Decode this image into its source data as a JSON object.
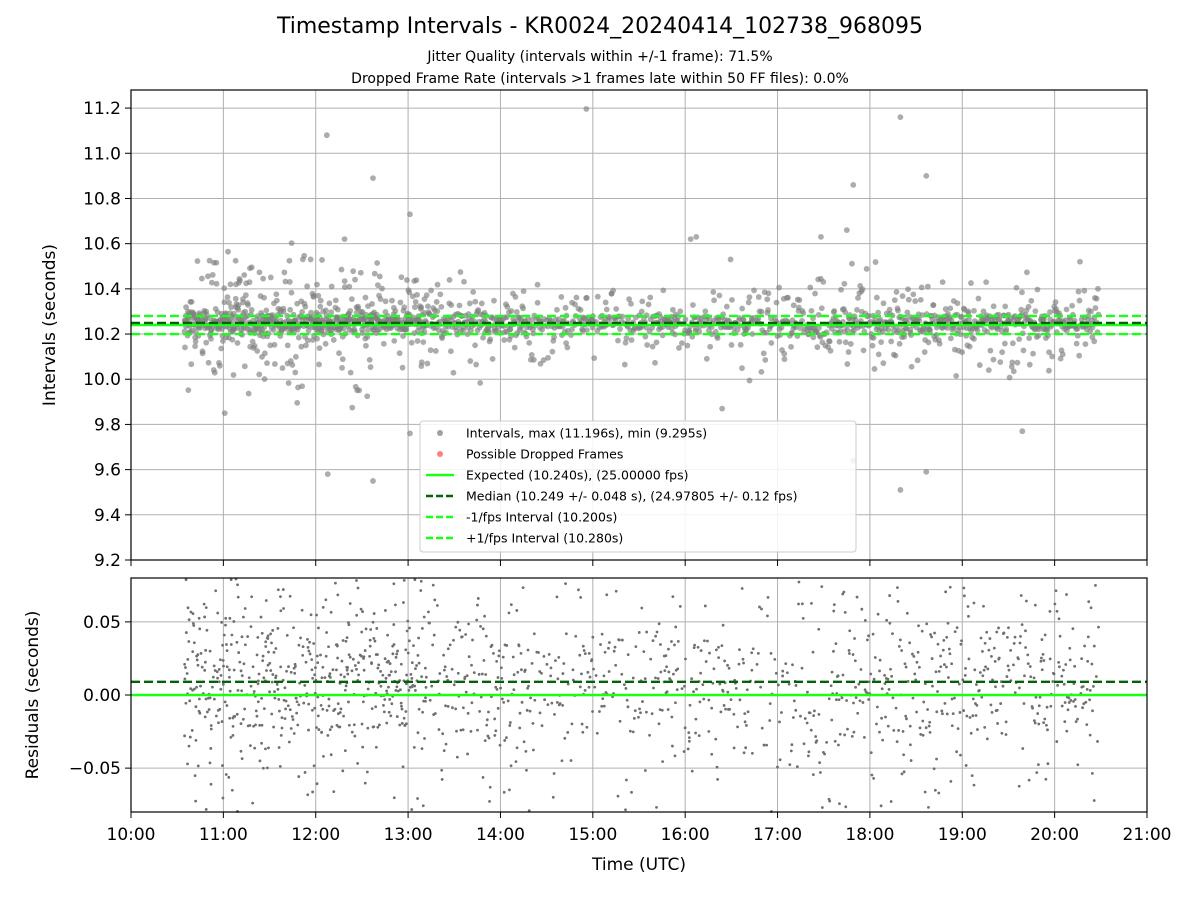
{
  "header": {
    "title": "Timestamp Intervals - KR0024_20240414_102738_968095",
    "subtitle_1": "Jitter Quality (intervals within +/-1 frame): 71.5%",
    "subtitle_2": "Dropped Frame Rate (intervals >1 frames late within 50 FF files): 0.0%"
  },
  "chart_data": [
    {
      "panel": "intervals",
      "type": "scatter",
      "ylabel": "Intervals (seconds)",
      "xlabel": "",
      "x_unit": "hour of day (UTC)",
      "xlim": [
        10.0,
        21.0
      ],
      "ylim": [
        9.2,
        11.28
      ],
      "yticks": [
        "9.2",
        "9.4",
        "9.6",
        "9.8",
        "10.0",
        "10.2",
        "10.4",
        "10.6",
        "10.8",
        "11.0",
        "11.2"
      ],
      "ytick_values": [
        9.2,
        9.4,
        9.6,
        9.8,
        10.0,
        10.2,
        10.4,
        10.6,
        10.8,
        11.0,
        11.2
      ],
      "grid": true,
      "legend_placement": "lower-center",
      "series": [
        {
          "name": "Intervals, max (11.196s), min (9.295s)",
          "kind": "points",
          "color": "#808080",
          "max": 11.196,
          "min": 9.295,
          "outliers": [
            [
              12.12,
              11.08
            ],
            [
              14.93,
              11.196
            ],
            [
              18.33,
              11.16
            ],
            [
              12.62,
              10.89
            ],
            [
              18.61,
              10.9
            ],
            [
              13.02,
              10.73
            ],
            [
              17.82,
              10.86
            ],
            [
              12.13,
              9.58
            ],
            [
              12.62,
              9.55
            ],
            [
              19.65,
              9.77
            ],
            [
              13.02,
              9.76
            ],
            [
              17.82,
              9.64
            ],
            [
              18.61,
              9.59
            ],
            [
              18.33,
              9.51
            ],
            [
              16.12,
              10.63
            ],
            [
              16.4,
              9.87
            ],
            [
              17.47,
              10.63
            ],
            [
              17.75,
              10.66
            ]
          ]
        },
        {
          "name": "Possible Dropped Frames",
          "kind": "points",
          "color": "#ff5555",
          "values": []
        },
        {
          "name": "Expected (10.240s), (25.00000 fps)",
          "kind": "hline",
          "y": 10.24,
          "color": "#1aff1a",
          "style": "solid"
        },
        {
          "name": "Median (10.249 +/- 0.048 s), (24.97805 +/- 0.12 fps)",
          "kind": "hline",
          "y": 10.249,
          "color": "#006400",
          "style": "dashed"
        },
        {
          "name": "-1/fps Interval (10.200s)",
          "kind": "hline",
          "y": 10.2,
          "color": "#1aff1a",
          "style": "dashed"
        },
        {
          "name": "+1/fps Interval (10.280s)",
          "kind": "hline",
          "y": 10.28,
          "color": "#1aff1a",
          "style": "dashed"
        }
      ]
    },
    {
      "panel": "residuals",
      "type": "scatter",
      "ylabel": "Residuals (seconds)",
      "xlabel": "Time (UTC)",
      "x_unit": "hour of day (UTC)",
      "xlim": [
        10.0,
        21.0
      ],
      "ylim": [
        -0.08,
        0.08
      ],
      "yticks": [
        "−0.05",
        "0.00",
        "0.05"
      ],
      "ytick_values": [
        -0.05,
        0.0,
        0.05
      ],
      "xticks": [
        "10:00",
        "11:00",
        "12:00",
        "13:00",
        "14:00",
        "15:00",
        "16:00",
        "17:00",
        "18:00",
        "19:00",
        "20:00",
        "21:00"
      ],
      "xtick_values": [
        10,
        11,
        12,
        13,
        14,
        15,
        16,
        17,
        18,
        19,
        20,
        21
      ],
      "grid": true,
      "series": [
        {
          "name": "Residuals",
          "kind": "points",
          "color": "#707070"
        },
        {
          "name": "Expected",
          "kind": "hline",
          "y": 0.0,
          "color": "#1aff1a",
          "style": "solid"
        },
        {
          "name": "Median",
          "kind": "hline",
          "y": 0.009,
          "color": "#006400",
          "style": "dashed"
        }
      ]
    }
  ]
}
